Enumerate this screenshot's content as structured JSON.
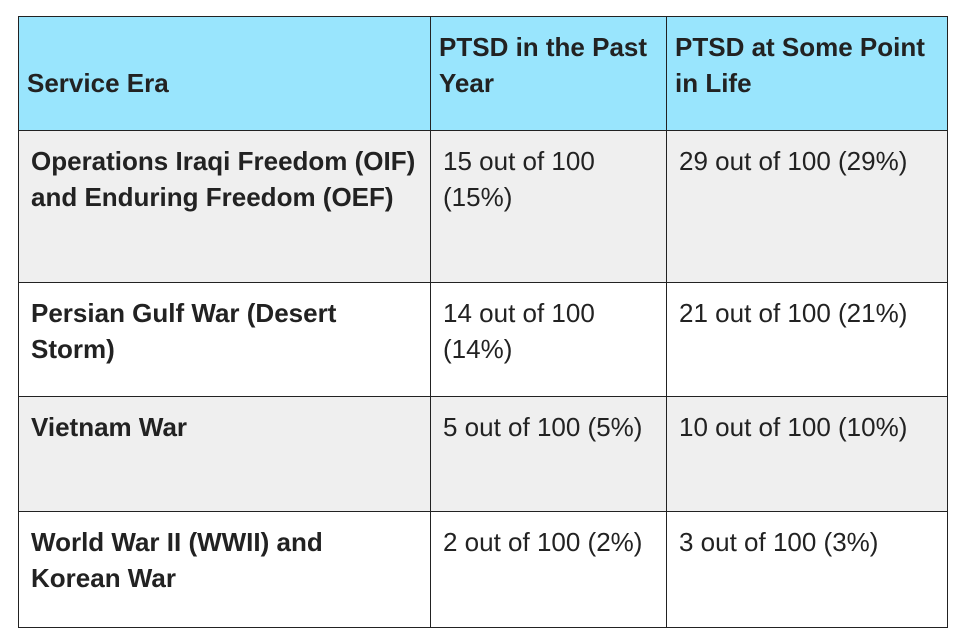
{
  "table": {
    "headers": {
      "era": "Service Era",
      "past_year": "PTSD in the Past Year",
      "lifetime": "PTSD at Some Point in Life"
    },
    "rows": [
      {
        "era": "Operations Iraqi Freedom (OIF) and Enduring Freedom (OEF)",
        "past_year": "15 out of 100 (15%)",
        "lifetime": "29 out of 100 (29%)"
      },
      {
        "era": "Persian Gulf War (Desert Storm)",
        "past_year": "14 out of 100 (14%)",
        "lifetime": "21 out of 100 (21%)"
      },
      {
        "era": "Vietnam War",
        "past_year": "5 out of 100 (5%)",
        "lifetime": "10 out of 100 (10%)"
      },
      {
        "era": "World War II (WWII) and Korean War",
        "past_year": "2 out of 100 (2%)",
        "lifetime": "3 out of 100 (3%)"
      }
    ]
  }
}
